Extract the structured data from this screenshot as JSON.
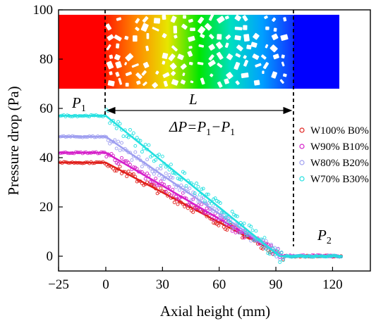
{
  "chart_data": {
    "type": "line",
    "xlabel": "Axial height (mm)",
    "ylabel": "Pressure drop (Pa)",
    "xlim": [
      -25,
      140
    ],
    "ylim": [
      -6,
      100
    ],
    "xticks": [
      -25,
      0,
      30,
      60,
      90,
      120
    ],
    "xtick_labels": [
      "−25",
      "0",
      "30",
      "60",
      "90",
      "120"
    ],
    "yticks": [
      0,
      20,
      40,
      60,
      80,
      100
    ],
    "ytick_labels": [
      "0",
      "20",
      "40",
      "60",
      "80",
      "100"
    ],
    "grid": false,
    "legend_position": "right",
    "series": [
      {
        "name": "W100% B0%",
        "color": "#e0201c",
        "marker": "circle-open",
        "x": [
          -25,
          0,
          94,
          96,
          125
        ],
        "y": [
          38,
          38,
          0,
          0,
          0
        ]
      },
      {
        "name": "W90% B10%",
        "color": "#d51fc9",
        "marker": "circle-open",
        "x": [
          -25,
          0,
          94,
          96,
          125
        ],
        "y": [
          42,
          42,
          0,
          0.3,
          0
        ]
      },
      {
        "name": "W80% B20%",
        "color": "#9f9ff0",
        "marker": "circle-open",
        "x": [
          -25,
          0,
          93,
          96,
          125
        ],
        "y": [
          48.5,
          48.5,
          0,
          0,
          0
        ]
      },
      {
        "name": "W70% B30%",
        "color": "#22e0e0",
        "marker": "circle-open",
        "x": [
          -25,
          0,
          92,
          96,
          125
        ],
        "y": [
          57,
          57,
          0,
          0,
          0
        ]
      }
    ],
    "annotations": {
      "p1": {
        "main": "P",
        "sub": "1"
      },
      "p2": {
        "main": "P",
        "sub": "2"
      },
      "length": "L",
      "equation": {
        "a": "ΔP",
        "b": "=P",
        "c": "1",
        "d": "−P",
        "e": "1"
      }
    },
    "inset": {
      "left_color": "#ff0000",
      "right_color": "#0000ff",
      "gradient": [
        "#ff1a00",
        "#ff8a00",
        "#e6e600",
        "#00e600",
        "#00e0c0",
        "#00a0ff",
        "#1030ff"
      ]
    }
  }
}
